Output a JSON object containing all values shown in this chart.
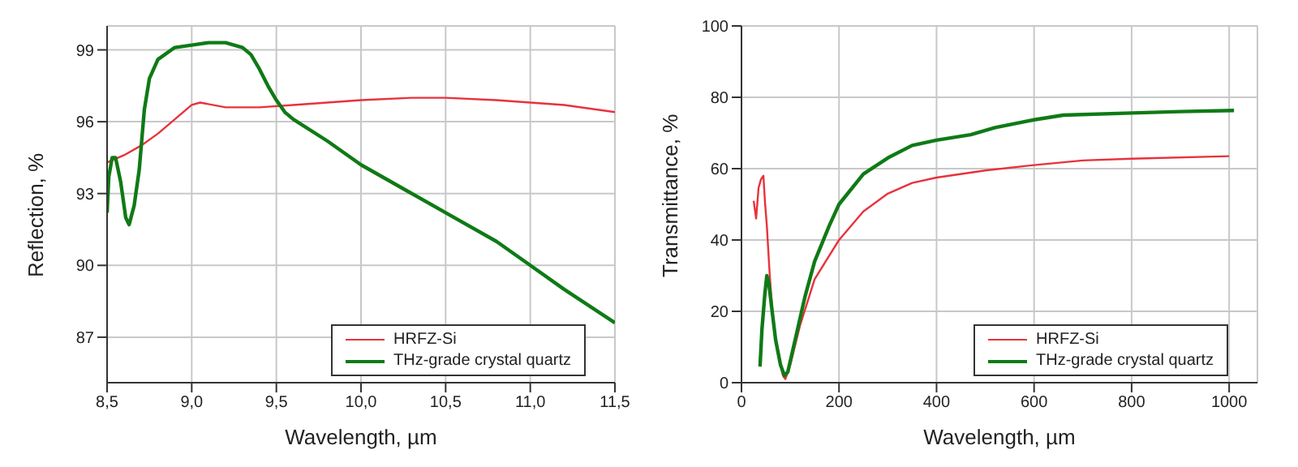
{
  "chart_data": [
    {
      "type": "line",
      "xlabel": "Wavelength, µm",
      "ylabel": "Reflection, %",
      "xlim": [
        8.5,
        11.5
      ],
      "ylim": [
        85.1,
        100
      ],
      "xticks": [
        {
          "value": 8.5,
          "label": "8,5"
        },
        {
          "value": 9,
          "label": "9,0"
        },
        {
          "value": 9.5,
          "label": "9,5"
        },
        {
          "value": 10,
          "label": "10,0"
        },
        {
          "value": 10.5,
          "label": "10,5"
        },
        {
          "value": 11,
          "label": "11,0"
        },
        {
          "value": 11.5,
          "label": "11,5"
        }
      ],
      "yticks": [
        87,
        90,
        93,
        96,
        99
      ],
      "grid": true,
      "legend": "bottom right",
      "marker": "none",
      "line_style": "solid",
      "series": [
        {
          "name": "HRFZ-Si",
          "color": "#e8323c",
          "x": [
            8.5,
            8.6,
            8.7,
            8.8,
            8.9,
            9.0,
            9.05,
            9.2,
            9.4,
            9.6,
            9.8,
            10.0,
            10.3,
            10.5,
            10.8,
            11.0,
            11.2,
            11.5
          ],
          "values": [
            94.3,
            94.6,
            95.0,
            95.5,
            96.1,
            96.7,
            96.8,
            96.6,
            96.6,
            96.7,
            96.8,
            96.9,
            97.0,
            97.0,
            96.9,
            96.8,
            96.7,
            96.4
          ]
        },
        {
          "name": "THz-grade crystal quartz",
          "color": "#0f7a16",
          "x": [
            8.5,
            8.51,
            8.53,
            8.55,
            8.58,
            8.61,
            8.63,
            8.66,
            8.69,
            8.72,
            8.75,
            8.8,
            8.9,
            9.0,
            9.1,
            9.2,
            9.3,
            9.35,
            9.4,
            9.45,
            9.5,
            9.55,
            9.6,
            9.8,
            10.0,
            10.3,
            10.5,
            10.8,
            11.0,
            11.2,
            11.5
          ],
          "values": [
            92.2,
            93.7,
            94.5,
            94.5,
            93.5,
            92.0,
            91.7,
            92.5,
            94.0,
            96.5,
            97.8,
            98.6,
            99.1,
            99.2,
            99.3,
            99.3,
            99.1,
            98.8,
            98.2,
            97.5,
            96.9,
            96.4,
            96.1,
            95.2,
            94.2,
            93.0,
            92.2,
            91.0,
            90.0,
            89.0,
            87.6
          ]
        }
      ]
    },
    {
      "type": "line",
      "xlabel": "Wavelength, µm",
      "ylabel": "Transmittance, %",
      "xlim": [
        0,
        1058
      ],
      "ylim": [
        0,
        100
      ],
      "xticks": [
        0,
        200,
        400,
        600,
        800,
        1000
      ],
      "yticks": [
        0,
        20,
        40,
        60,
        80,
        100
      ],
      "grid": true,
      "legend": "bottom right",
      "marker": "none",
      "line_style": "solid",
      "series": [
        {
          "name": "HRFZ-Si",
          "color": "#e8323c",
          "x": [
            25,
            30,
            35,
            40,
            45,
            48,
            52,
            58,
            65,
            75,
            85,
            90,
            100,
            120,
            150,
            200,
            250,
            300,
            350,
            400,
            500,
            600,
            700,
            800,
            1000
          ],
          "values": [
            51,
            46,
            54.6,
            57,
            58,
            51,
            44,
            30,
            17,
            8,
            2,
            1,
            5,
            16,
            29,
            40,
            48,
            53,
            56,
            57.5,
            59.5,
            61,
            62.3,
            62.8,
            63.5
          ]
        },
        {
          "name": "THz-grade crystal quartz",
          "color": "#0f7a16",
          "x": [
            38,
            42,
            48,
            52,
            56,
            62,
            70,
            80,
            88,
            95,
            110,
            130,
            150,
            180,
            200,
            250,
            300,
            350,
            400,
            470,
            520,
            600,
            660,
            800,
            900,
            1010
          ],
          "values": [
            4.5,
            15,
            25,
            30,
            28,
            21,
            12,
            5,
            2,
            3,
            12,
            24,
            34,
            44,
            50,
            58.5,
            63,
            66.5,
            68,
            69.5,
            71.5,
            73.7,
            75,
            75.6,
            76,
            76.3
          ]
        }
      ]
    }
  ]
}
